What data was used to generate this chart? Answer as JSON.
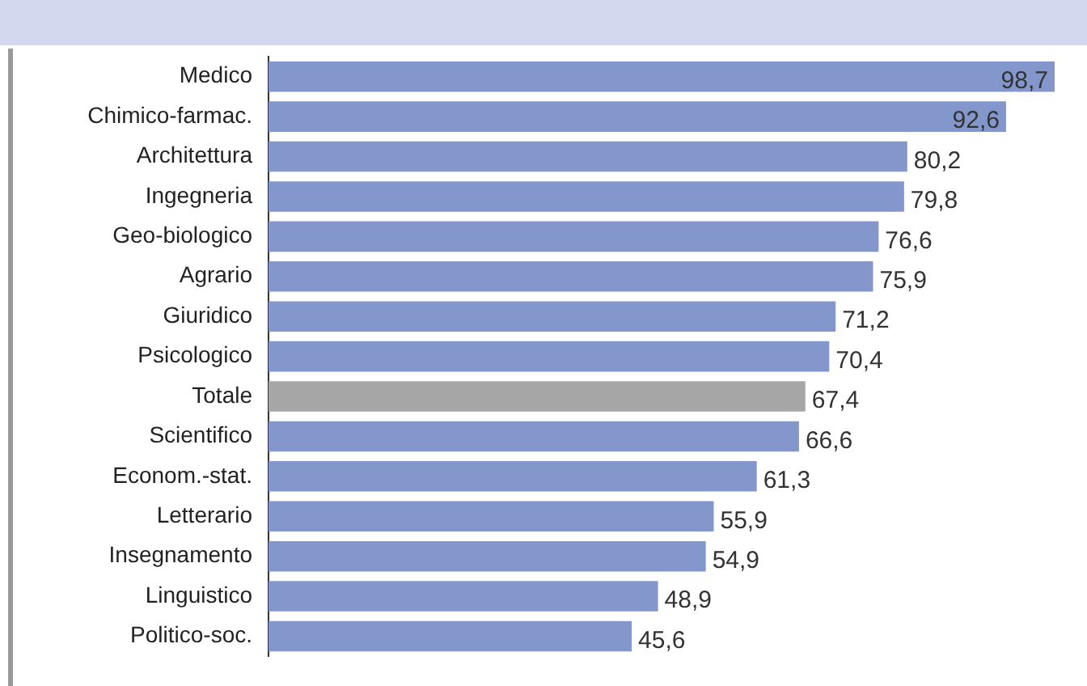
{
  "chart_data": {
    "type": "bar",
    "orientation": "horizontal",
    "categories": [
      "Medico",
      "Chimico-farmac.",
      "Architettura",
      "Ingegneria",
      "Geo-biologico",
      "Agrario",
      "Giuridico",
      "Psicologico",
      "Totale",
      "Scientifico",
      "Econom.-stat.",
      "Letterario",
      "Insegnamento",
      "Linguistico",
      "Politico-soc."
    ],
    "values": [
      98.7,
      92.6,
      80.2,
      79.8,
      76.6,
      75.9,
      71.2,
      70.4,
      67.4,
      66.6,
      61.3,
      55.9,
      54.9,
      48.9,
      45.6
    ],
    "value_labels": [
      "98,7",
      "92,6",
      "80,2",
      "79,8",
      "76,6",
      "75,9",
      "71,2",
      "70,4",
      "67,4",
      "66,6",
      "61,3",
      "55,9",
      "54,9",
      "48,9",
      "45,6"
    ],
    "colors": [
      "#8497cc",
      "#8497cc",
      "#8497cc",
      "#8497cc",
      "#8497cc",
      "#8497cc",
      "#8497cc",
      "#8497cc",
      "#a6a6a6",
      "#8497cc",
      "#8497cc",
      "#8497cc",
      "#8497cc",
      "#8497cc",
      "#8497cc"
    ],
    "grid": false,
    "legend": false
  }
}
